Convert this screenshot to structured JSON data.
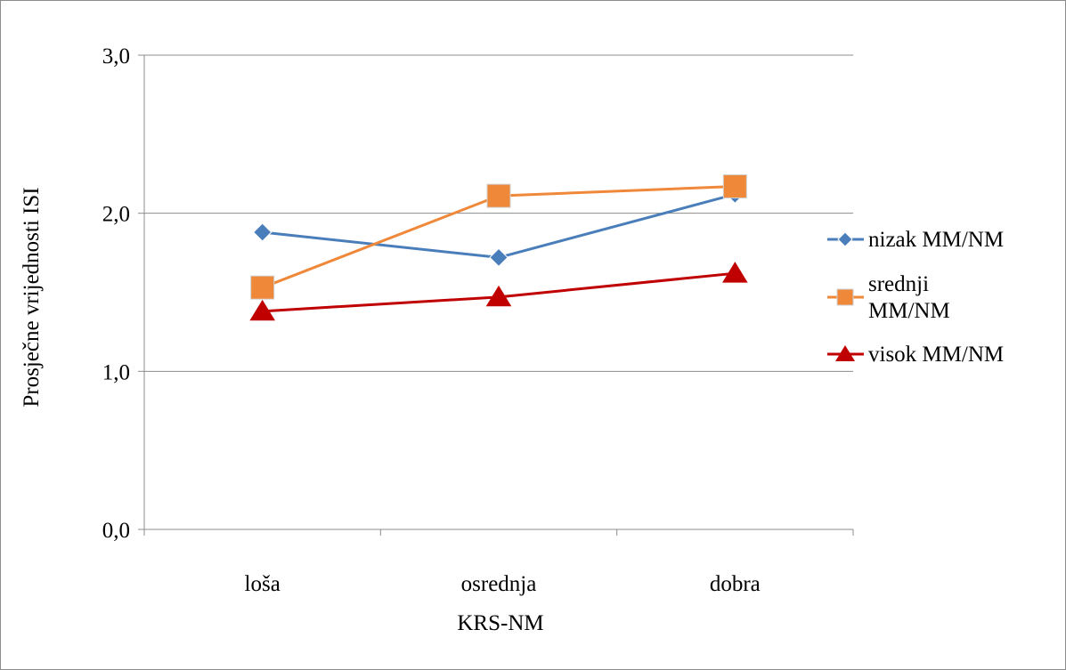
{
  "chart_data": {
    "type": "line",
    "categories": [
      "loša",
      "osrednja",
      "dobra"
    ],
    "series": [
      {
        "name": "nizak MM/NM",
        "values": [
          1.88,
          1.72,
          2.12
        ],
        "color": "#4a7ebb",
        "marker": "diamond"
      },
      {
        "name": "srednji MM/NM",
        "values": [
          1.53,
          2.11,
          2.17
        ],
        "color": "#f0883a",
        "marker": "square"
      },
      {
        "name": "visok MM/NM",
        "values": [
          1.38,
          1.47,
          1.62
        ],
        "color": "#c00000",
        "marker": "triangle"
      }
    ],
    "title": "",
    "xlabel": "KRS-NM",
    "ylabel": "Prosječne vrijednosti ISI",
    "ylim": [
      0,
      3
    ],
    "yticks": [
      "0,0",
      "1,0",
      "2,0",
      "3,0"
    ],
    "ytick_values": [
      0,
      1,
      2,
      3
    ],
    "grid": true,
    "legend_position": "right",
    "gridline_color": "#8c8c8c"
  }
}
